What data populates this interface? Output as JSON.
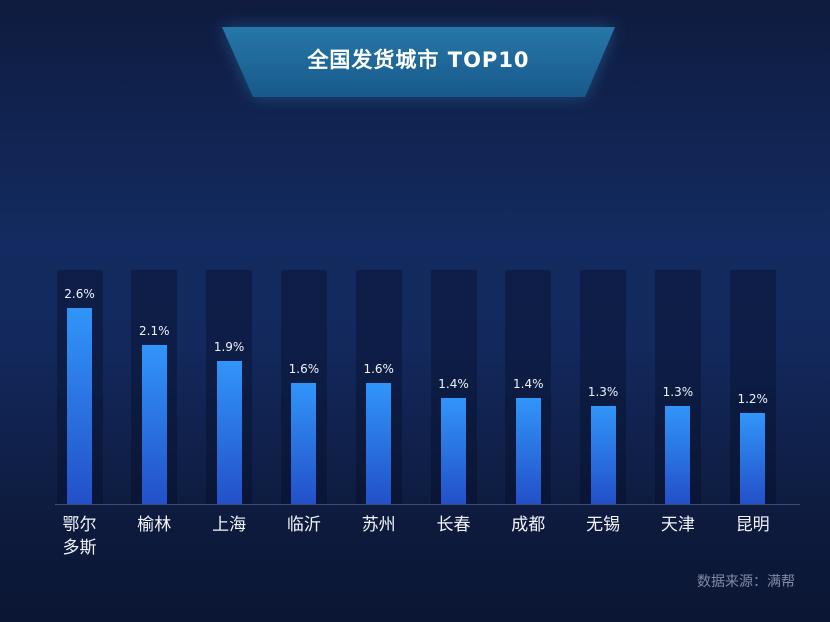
{
  "chart_data": {
    "type": "bar",
    "title": "全国发货城市 TOP10",
    "categories": [
      "鄂尔多斯",
      "榆林",
      "上海",
      "临沂",
      "苏州",
      "长春",
      "成都",
      "无锡",
      "天津",
      "昆明"
    ],
    "values": [
      2.6,
      2.1,
      1.9,
      1.6,
      1.6,
      1.4,
      1.4,
      1.3,
      1.3,
      1.2
    ],
    "data_labels": [
      "2.6%",
      "2.1%",
      "1.9%",
      "1.6%",
      "1.6%",
      "1.4%",
      "1.4%",
      "1.3%",
      "1.3%",
      "1.2%"
    ],
    "ylim": [
      0,
      3.1
    ],
    "grid": false
  },
  "footer": {
    "source": "数据来源：满帮"
  },
  "colors": {
    "background": "#132b60",
    "banner_top": "#2677a8",
    "banner_bottom": "#18598b",
    "bar_top": "#3195f9",
    "bar_bottom": "#2350c8",
    "text": "#ffffff",
    "source_text": "#7f8aa5"
  }
}
